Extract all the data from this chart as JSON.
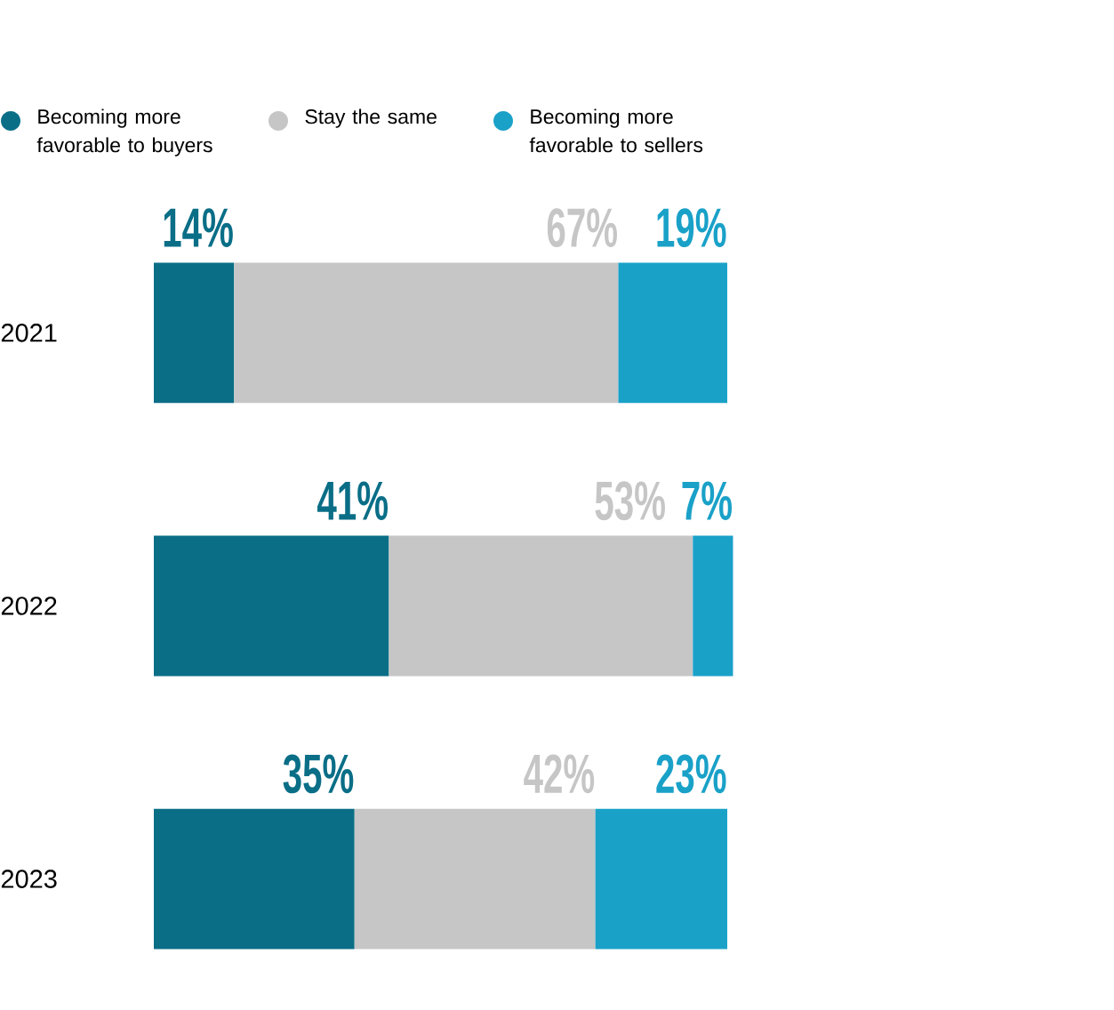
{
  "chart_data": {
    "type": "bar",
    "orientation": "horizontal",
    "stacked": true,
    "legend": "top left",
    "categories": [
      "2021",
      "2022",
      "2023"
    ],
    "series": [
      {
        "name": "Becoming more favorable to buyers",
        "color": "#0a6e87",
        "values": [
          14,
          41,
          35
        ],
        "value_labels": [
          "14%",
          "41%",
          "35%"
        ]
      },
      {
        "name": "Stay the same",
        "color": "#c6c6c6",
        "values": [
          67,
          53,
          42
        ],
        "value_labels": [
          "67%",
          "53%",
          "42%"
        ]
      },
      {
        "name": "Becoming more favorable to sellers",
        "color": "#1aa1c8",
        "values": [
          19,
          7,
          23
        ],
        "value_labels": [
          "19%",
          "7%",
          "23%"
        ]
      }
    ]
  }
}
